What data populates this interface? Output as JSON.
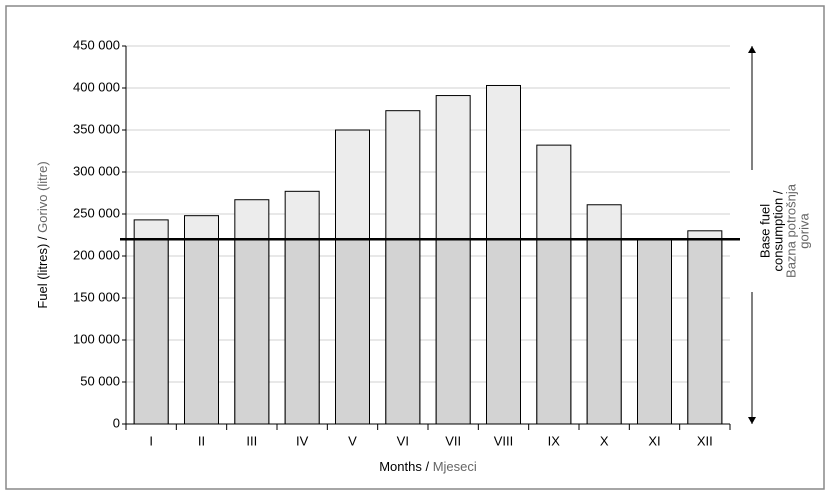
{
  "chart_data": {
    "type": "bar",
    "y_label": [
      "Fuel (litres) / ",
      "Gorivo (litre)"
    ],
    "x_label": [
      "Months / ",
      "Mjeseci"
    ],
    "categories": [
      "I",
      "II",
      "III",
      "IV",
      "V",
      "VI",
      "VII",
      "VIII",
      "IX",
      "X",
      "XI",
      "XII"
    ],
    "values": [
      243000,
      248000,
      267000,
      277000,
      350000,
      373000,
      391000,
      403000,
      332000,
      261000,
      220000,
      230000
    ],
    "color": "#ececec",
    "base_color": "#d3d3d3",
    "base_line": {
      "value": 220000,
      "label": [
        [
          "Base fuel",
          "consumption /"
        ],
        [
          "Bazna potrošnja",
          "goriva"
        ]
      ]
    },
    "ylim": [
      0,
      450000
    ],
    "yticks": [
      0,
      {
        "value": 50000,
        "label": "50 000"
      },
      {
        "value": 100000,
        "label": "100 000"
      },
      {
        "value": 150000,
        "label": "150 000"
      },
      {
        "value": 200000,
        "label": "200 000"
      },
      {
        "value": 250000,
        "label": "250 000"
      },
      {
        "value": 300000,
        "label": "300 000"
      },
      {
        "value": 350000,
        "label": "350 000"
      },
      {
        "value": 400000,
        "label": "400 000"
      },
      {
        "value": 450000,
        "label": "450 000"
      }
    ],
    "grid": true
  }
}
